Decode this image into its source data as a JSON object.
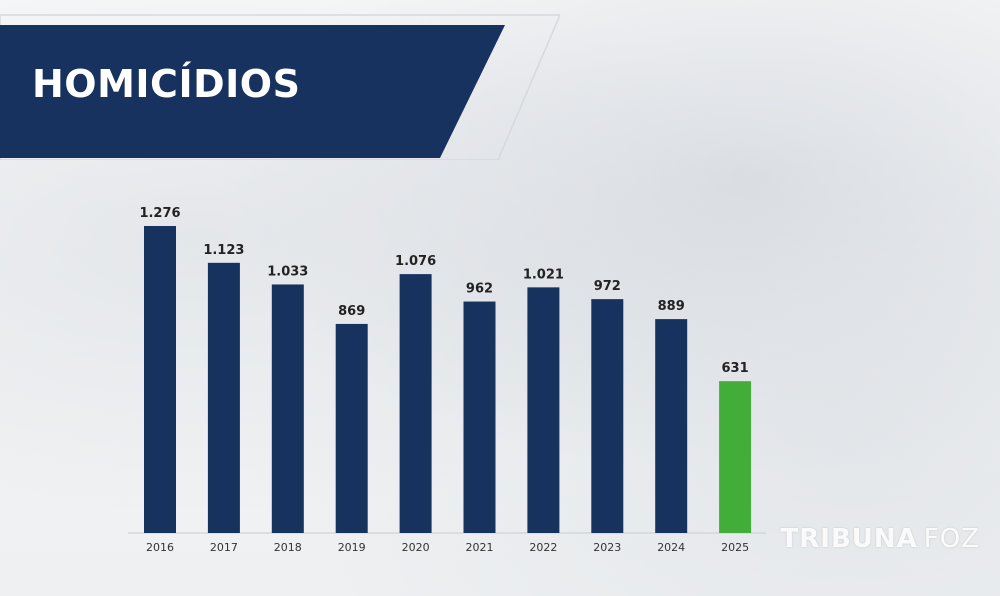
{
  "chart_data": {
    "type": "bar",
    "title": "HOMICÍDIOS",
    "categories": [
      "2016",
      "2017",
      "2018",
      "2019",
      "2020",
      "2021",
      "2022",
      "2023",
      "2024",
      "2025"
    ],
    "values": [
      1276,
      1123,
      1033,
      869,
      1076,
      962,
      1021,
      972,
      889,
      631
    ],
    "value_labels": [
      "1.276",
      "1.123",
      "1.033",
      "869",
      "1.076",
      "962",
      "1.021",
      "972",
      "889",
      "631"
    ],
    "bar_colors": [
      "#17325e",
      "#17325e",
      "#17325e",
      "#17325e",
      "#17325e",
      "#17325e",
      "#17325e",
      "#17325e",
      "#17325e",
      "#43ad3a"
    ],
    "ylim": [
      0,
      1276
    ],
    "grid": false,
    "legend": "none"
  },
  "colors": {
    "banner": "#17325e",
    "axis": "#c8ccd2",
    "label": "#222222",
    "tick": "#333333"
  },
  "watermark": {
    "part1": "TRIBUNA",
    "part2": "FOZ"
  }
}
